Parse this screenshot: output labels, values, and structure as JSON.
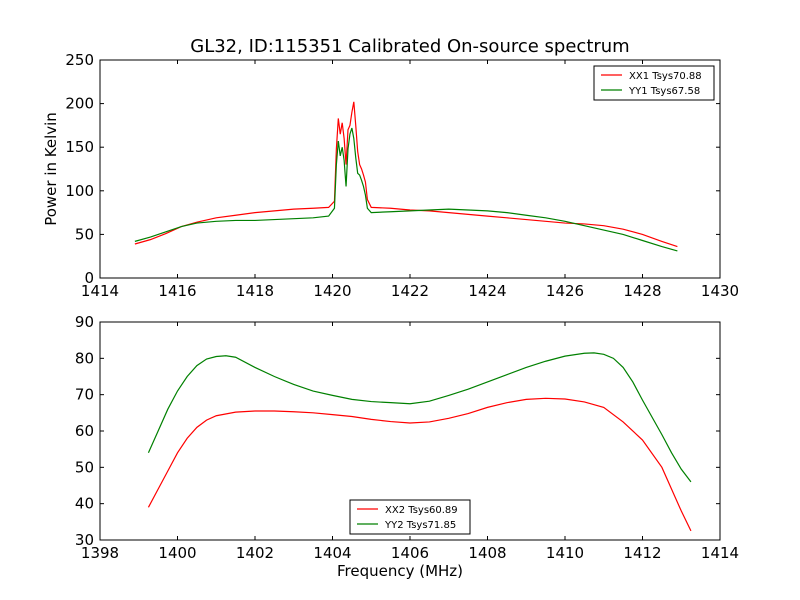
{
  "figure": {
    "title": "GL32, ID:115351 Calibrated On-source spectrum"
  },
  "chart_data": [
    {
      "type": "line",
      "xlabel": "",
      "ylabel": "Power in Kelvin",
      "xlim": [
        1414,
        1430
      ],
      "ylim": [
        0,
        250
      ],
      "xticks": [
        1414,
        1416,
        1418,
        1420,
        1422,
        1424,
        1426,
        1428,
        1430
      ],
      "yticks": [
        0,
        50,
        100,
        150,
        200,
        250
      ],
      "legend_position": "top-right",
      "series": [
        {
          "name": "XX1 Tsys70.88",
          "color": "#ff0000",
          "points": [
            [
              1414.9,
              39
            ],
            [
              1415.3,
              44
            ],
            [
              1415.7,
              51
            ],
            [
              1416.1,
              59
            ],
            [
              1416.5,
              64
            ],
            [
              1417.0,
              69
            ],
            [
              1417.5,
              72
            ],
            [
              1418.0,
              75
            ],
            [
              1418.5,
              77
            ],
            [
              1419.0,
              79
            ],
            [
              1419.5,
              80
            ],
            [
              1419.9,
              81
            ],
            [
              1420.05,
              88
            ],
            [
              1420.1,
              148
            ],
            [
              1420.15,
              183
            ],
            [
              1420.2,
              165
            ],
            [
              1420.25,
              178
            ],
            [
              1420.3,
              160
            ],
            [
              1420.35,
              130
            ],
            [
              1420.4,
              170
            ],
            [
              1420.45,
              175
            ],
            [
              1420.5,
              190
            ],
            [
              1420.55,
              202
            ],
            [
              1420.6,
              175
            ],
            [
              1420.65,
              145
            ],
            [
              1420.7,
              130
            ],
            [
              1420.75,
              125
            ],
            [
              1420.8,
              118
            ],
            [
              1420.85,
              110
            ],
            [
              1420.9,
              90
            ],
            [
              1421.0,
              81
            ],
            [
              1421.5,
              80
            ],
            [
              1422.0,
              78
            ],
            [
              1422.5,
              77
            ],
            [
              1423.0,
              75
            ],
            [
              1423.5,
              73
            ],
            [
              1424.0,
              71
            ],
            [
              1424.5,
              69
            ],
            [
              1425.0,
              67
            ],
            [
              1425.5,
              65
            ],
            [
              1426.0,
              63
            ],
            [
              1426.5,
              62
            ],
            [
              1427.0,
              60
            ],
            [
              1427.5,
              56
            ],
            [
              1428.0,
              50
            ],
            [
              1428.5,
              42
            ],
            [
              1428.9,
              36
            ]
          ]
        },
        {
          "name": "YY1 Tsys67.58",
          "color": "#008000",
          "points": [
            [
              1414.9,
              42
            ],
            [
              1415.3,
              47
            ],
            [
              1415.7,
              53
            ],
            [
              1416.1,
              59
            ],
            [
              1416.5,
              63
            ],
            [
              1417.0,
              65
            ],
            [
              1417.5,
              66
            ],
            [
              1418.0,
              66
            ],
            [
              1418.5,
              67
            ],
            [
              1419.0,
              68
            ],
            [
              1419.5,
              69
            ],
            [
              1419.9,
              71
            ],
            [
              1420.05,
              80
            ],
            [
              1420.1,
              130
            ],
            [
              1420.15,
              157
            ],
            [
              1420.2,
              140
            ],
            [
              1420.25,
              150
            ],
            [
              1420.3,
              135
            ],
            [
              1420.35,
              105
            ],
            [
              1420.4,
              148
            ],
            [
              1420.45,
              165
            ],
            [
              1420.5,
              172
            ],
            [
              1420.55,
              160
            ],
            [
              1420.6,
              138
            ],
            [
              1420.65,
              120
            ],
            [
              1420.7,
              118
            ],
            [
              1420.75,
              112
            ],
            [
              1420.8,
              105
            ],
            [
              1420.85,
              95
            ],
            [
              1420.9,
              80
            ],
            [
              1421.0,
              75
            ],
            [
              1421.5,
              76
            ],
            [
              1422.0,
              77
            ],
            [
              1422.5,
              78
            ],
            [
              1423.0,
              79
            ],
            [
              1423.5,
              78
            ],
            [
              1424.0,
              77
            ],
            [
              1424.5,
              75
            ],
            [
              1425.0,
              72
            ],
            [
              1425.5,
              69
            ],
            [
              1426.0,
              65
            ],
            [
              1426.5,
              60
            ],
            [
              1427.0,
              55
            ],
            [
              1427.5,
              50
            ],
            [
              1428.0,
              43
            ],
            [
              1428.5,
              36
            ],
            [
              1428.9,
              31
            ]
          ]
        }
      ]
    },
    {
      "type": "line",
      "xlabel": "Frequency (MHz)",
      "ylabel": "",
      "xlim": [
        1398,
        1414
      ],
      "ylim": [
        30,
        90
      ],
      "xticks": [
        1398,
        1400,
        1402,
        1404,
        1406,
        1408,
        1410,
        1412,
        1414
      ],
      "yticks": [
        30,
        40,
        50,
        60,
        70,
        80,
        90
      ],
      "legend_position": "bottom-center",
      "series": [
        {
          "name": "XX2 Tsys60.89",
          "color": "#ff0000",
          "points": [
            [
              1399.25,
              39
            ],
            [
              1399.5,
              44
            ],
            [
              1399.75,
              49
            ],
            [
              1400.0,
              54
            ],
            [
              1400.25,
              58
            ],
            [
              1400.5,
              61
            ],
            [
              1400.75,
              63
            ],
            [
              1401.0,
              64.2
            ],
            [
              1401.5,
              65.2
            ],
            [
              1402.0,
              65.5
            ],
            [
              1402.5,
              65.5
            ],
            [
              1403.0,
              65.3
            ],
            [
              1403.5,
              65
            ],
            [
              1404.0,
              64.5
            ],
            [
              1404.5,
              64
            ],
            [
              1405.0,
              63.2
            ],
            [
              1405.5,
              62.6
            ],
            [
              1406.0,
              62.2
            ],
            [
              1406.5,
              62.5
            ],
            [
              1407.0,
              63.5
            ],
            [
              1407.5,
              64.8
            ],
            [
              1408.0,
              66.5
            ],
            [
              1408.5,
              67.8
            ],
            [
              1409.0,
              68.7
            ],
            [
              1409.5,
              69
            ],
            [
              1410.0,
              68.8
            ],
            [
              1410.5,
              68
            ],
            [
              1411.0,
              66.5
            ],
            [
              1411.5,
              62.5
            ],
            [
              1412.0,
              57.5
            ],
            [
              1412.5,
              50
            ],
            [
              1412.75,
              44
            ],
            [
              1413.0,
              38
            ],
            [
              1413.25,
              32.5
            ]
          ]
        },
        {
          "name": "YY2 Tsys71.85",
          "color": "#008000",
          "points": [
            [
              1399.25,
              54
            ],
            [
              1399.5,
              60
            ],
            [
              1399.75,
              66
            ],
            [
              1400.0,
              71
            ],
            [
              1400.25,
              75
            ],
            [
              1400.5,
              78
            ],
            [
              1400.75,
              79.8
            ],
            [
              1401.0,
              80.5
            ],
            [
              1401.25,
              80.7
            ],
            [
              1401.5,
              80.3
            ],
            [
              1402.0,
              77.5
            ],
            [
              1402.5,
              75
            ],
            [
              1403.0,
              72.8
            ],
            [
              1403.5,
              71
            ],
            [
              1404.0,
              69.8
            ],
            [
              1404.5,
              68.7
            ],
            [
              1405.0,
              68.1
            ],
            [
              1405.5,
              67.8
            ],
            [
              1406.0,
              67.5
            ],
            [
              1406.5,
              68.2
            ],
            [
              1407.0,
              69.8
            ],
            [
              1407.5,
              71.5
            ],
            [
              1408.0,
              73.5
            ],
            [
              1408.5,
              75.5
            ],
            [
              1409.0,
              77.5
            ],
            [
              1409.5,
              79.2
            ],
            [
              1410.0,
              80.6
            ],
            [
              1410.5,
              81.4
            ],
            [
              1410.75,
              81.5
            ],
            [
              1411.0,
              81.1
            ],
            [
              1411.25,
              80
            ],
            [
              1411.5,
              77.5
            ],
            [
              1411.75,
              73.5
            ],
            [
              1412.0,
              68.5
            ],
            [
              1412.5,
              59
            ],
            [
              1412.75,
              54
            ],
            [
              1413.0,
              49.5
            ],
            [
              1413.25,
              46
            ]
          ]
        }
      ]
    }
  ]
}
